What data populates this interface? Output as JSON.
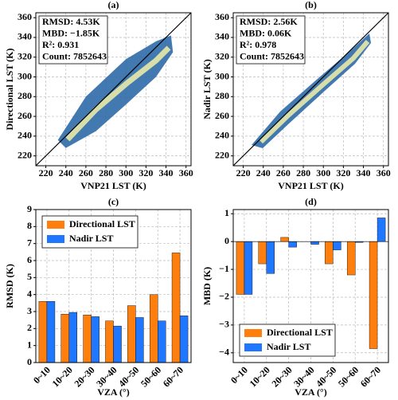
{
  "chart_data": [
    {
      "type": "scatter",
      "title": "(a)",
      "x_label": "VNP21 LST (K)",
      "y_label": "Directional LST (K)",
      "annotations": [
        "RMSD: 4.53K",
        "MBD: −1.85K",
        "R²: 0.931",
        "Count: 7852643"
      ],
      "xlim": [
        210,
        365
      ],
      "ylim": [
        210,
        365
      ],
      "xticks": [
        220,
        240,
        260,
        280,
        300,
        320,
        340,
        360
      ],
      "yticks": [
        220,
        240,
        260,
        280,
        300,
        320,
        340,
        360
      ],
      "grid": true
    },
    {
      "type": "scatter",
      "title": "(b)",
      "x_label": "VNP21 LST (K)",
      "y_label": "Nadir LST (K)",
      "annotations": [
        "RMSD: 2.56K",
        "MBD: 0.06K",
        "R²: 0.978",
        "Count: 7852643"
      ],
      "xlim": [
        210,
        365
      ],
      "ylim": [
        210,
        365
      ],
      "xticks": [
        220,
        240,
        260,
        280,
        300,
        320,
        340,
        360
      ],
      "yticks": [
        220,
        240,
        260,
        280,
        300,
        320,
        340,
        360
      ],
      "grid": true
    },
    {
      "type": "bar",
      "title": "(c)",
      "x_label": "VZA (°)",
      "y_label": "RMSD (K)",
      "categories": [
        "0~10",
        "10~20",
        "20~30",
        "30~40",
        "40~50",
        "50~60",
        "60~70"
      ],
      "series": [
        {
          "name": "Directional LST",
          "color": "#ff7f0e",
          "values": [
            3.6,
            2.85,
            2.8,
            2.45,
            3.35,
            4.0,
            6.45
          ]
        },
        {
          "name": "Nadir LST",
          "color": "#1f77ff",
          "values": [
            3.6,
            2.95,
            2.7,
            2.15,
            2.65,
            2.45,
            2.75
          ]
        }
      ],
      "ylim": [
        0,
        9
      ],
      "yticks": [
        0,
        1,
        2,
        3,
        4,
        5,
        6,
        7,
        8,
        9
      ],
      "grid": true,
      "legend": "upper left"
    },
    {
      "type": "bar",
      "title": "(d)",
      "x_label": "VZA (°)",
      "y_label": "MBD (K)",
      "categories": [
        "0~10",
        "10~20",
        "20~30",
        "30~40",
        "40~50",
        "50~60",
        "60~70"
      ],
      "series": [
        {
          "name": "Directional LST",
          "color": "#ff7f0e",
          "values": [
            -1.9,
            -0.8,
            0.15,
            0,
            -0.8,
            -1.2,
            -3.85
          ]
        },
        {
          "name": "Nadir LST",
          "color": "#1f77ff",
          "values": [
            -1.9,
            -1.15,
            -0.2,
            -0.1,
            -0.3,
            -0.03,
            0.85
          ]
        }
      ],
      "ylim": [
        -4.35,
        1.15
      ],
      "yticks": [
        {
          "value": -4,
          "label": "−4"
        },
        {
          "value": -3,
          "label": "−3"
        },
        {
          "value": -2,
          "label": "−2"
        },
        {
          "value": -1,
          "label": "−1"
        },
        0,
        1
      ],
      "grid": true,
      "legend": "lower left"
    }
  ]
}
